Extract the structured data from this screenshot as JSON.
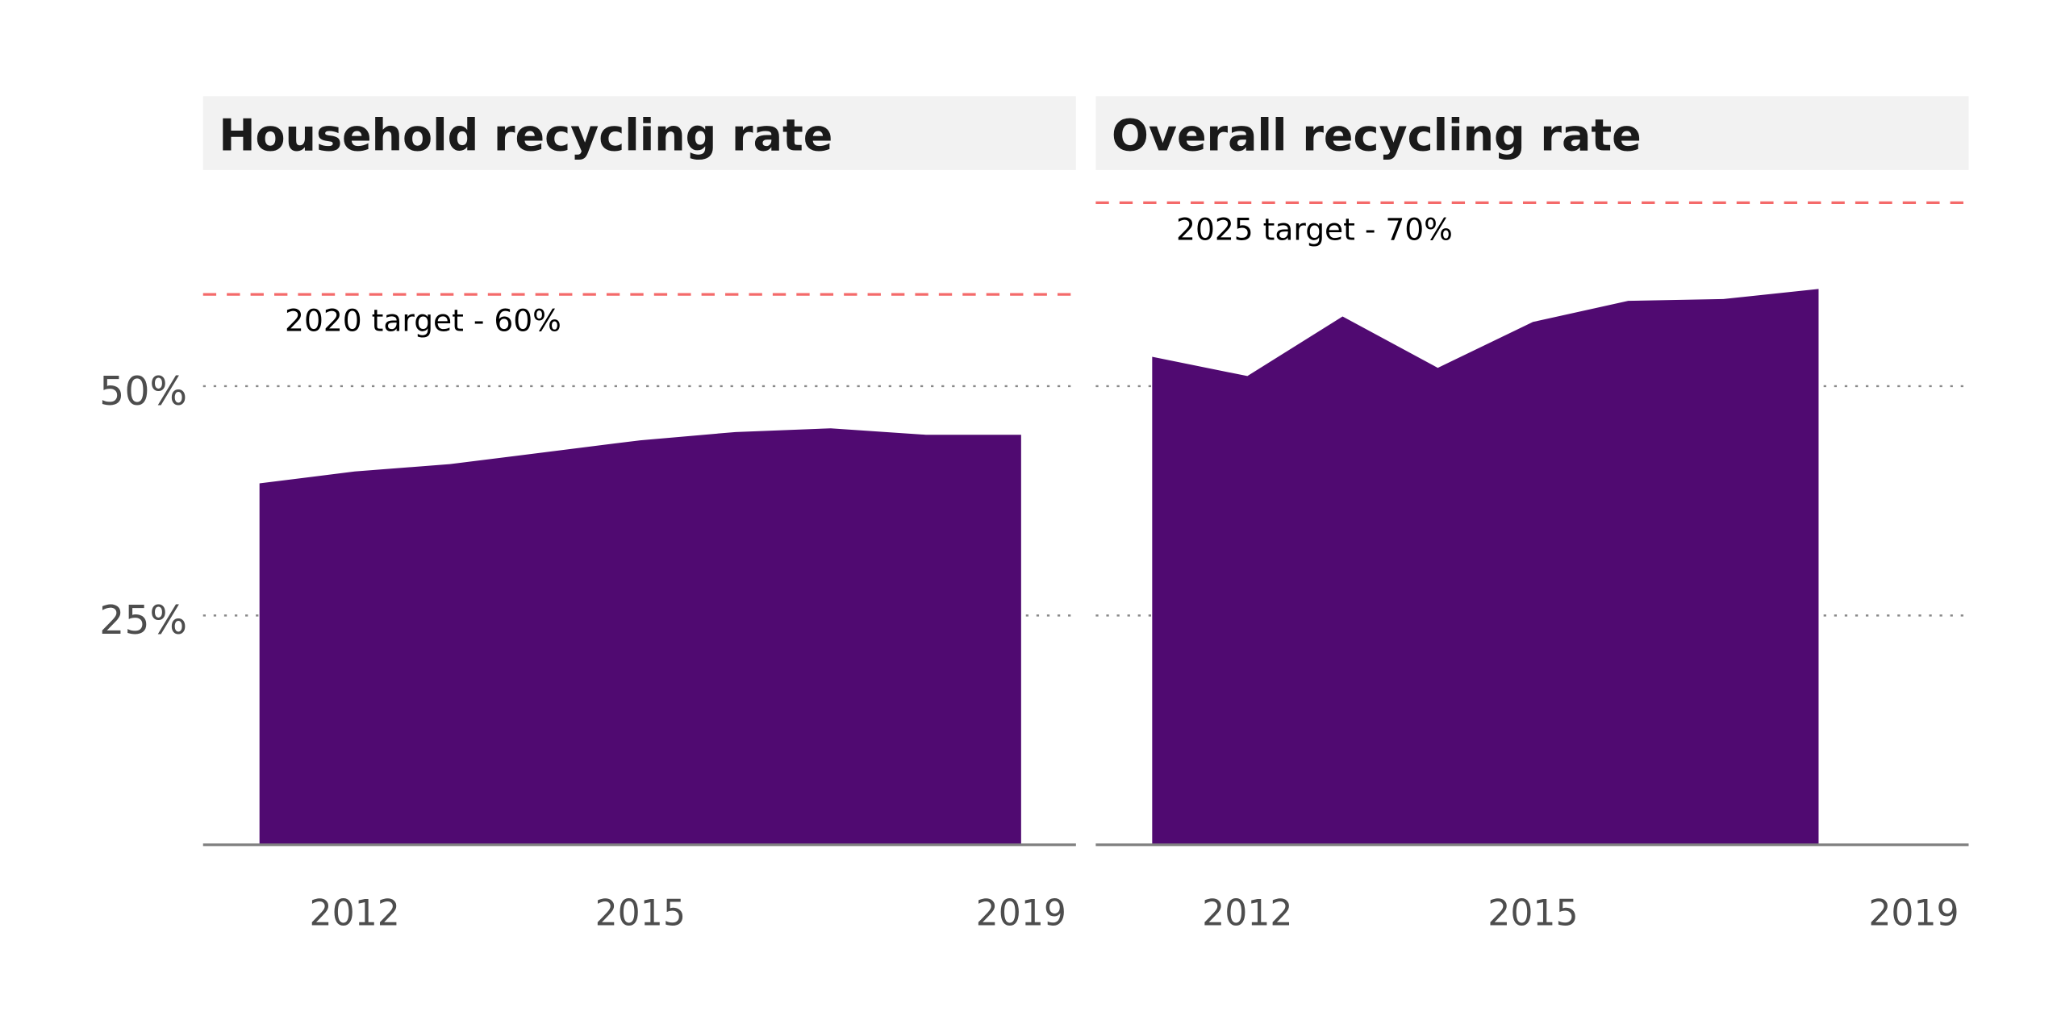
{
  "chart_data": [
    {
      "type": "area",
      "title": "Household recycling rate",
      "x": [
        2011,
        2012,
        2013,
        2014,
        2015,
        2016,
        2017,
        2018,
        2019
      ],
      "values": [
        39.4,
        40.7,
        41.5,
        42.8,
        44.1,
        45.0,
        45.4,
        44.7,
        44.7
      ],
      "ylim": [
        0,
        75
      ],
      "xlim": [
        2010.4,
        2019.6
      ],
      "y_ticks": [
        25,
        50
      ],
      "y_tick_labels": [
        "25%",
        "50%"
      ],
      "x_ticks": [
        2012,
        2015,
        2019
      ],
      "x_tick_labels": [
        "2012",
        "2015",
        "2019"
      ],
      "target": {
        "value": 60,
        "label": "2020 target - 60%"
      },
      "grid": "horizontal dotted"
    },
    {
      "type": "area",
      "title": "Overall recycling rate",
      "x": [
        2011,
        2012,
        2013,
        2014,
        2015,
        2016,
        2017,
        2018
      ],
      "values": [
        53.2,
        51.1,
        57.6,
        52.0,
        57.0,
        59.3,
        59.5,
        60.6
      ],
      "ylim": [
        0,
        75
      ],
      "xlim": [
        2010.4,
        2019.6
      ],
      "y_ticks": [
        25,
        50
      ],
      "x_ticks": [
        2012,
        2015,
        2019
      ],
      "x_tick_labels": [
        "2012",
        "2015",
        "2019"
      ],
      "target": {
        "value": 70,
        "label": "2025 target - 70%"
      },
      "grid": "horizontal dotted"
    }
  ],
  "colors": {
    "area": "#500a71",
    "target": "#f46a6a",
    "title_bg": "#f2f2f2",
    "grid": "#888888",
    "axis": "#808080"
  }
}
